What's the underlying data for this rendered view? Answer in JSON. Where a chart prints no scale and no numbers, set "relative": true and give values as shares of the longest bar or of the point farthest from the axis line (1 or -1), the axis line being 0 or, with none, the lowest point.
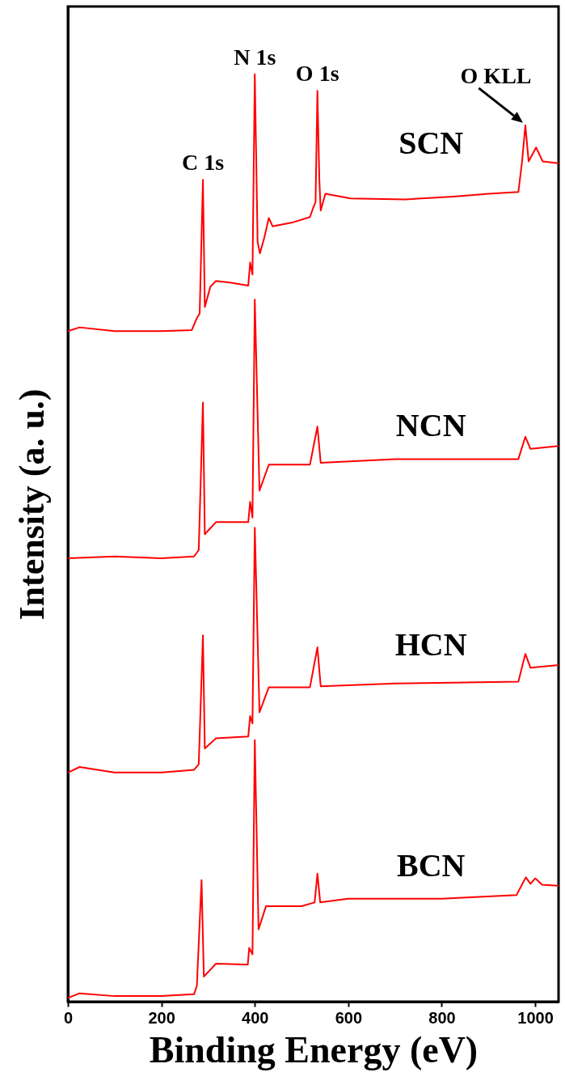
{
  "chart_data": {
    "type": "line",
    "xlabel": "Binding Energy (eV)",
    "ylabel": "Intensity (a. u.)",
    "relative": true,
    "xlim": [
      0,
      1050
    ],
    "xticks": [
      0,
      200,
      400,
      600,
      800,
      1000
    ],
    "grid": false,
    "marker": "none",
    "line_style": "solid",
    "annotations": [
      {
        "text": "C 1s",
        "x": 289,
        "y": 0.886
      },
      {
        "text": "N 1s",
        "x": 400,
        "y": 1.0
      },
      {
        "text": "O 1s",
        "x": 534,
        "y": 0.982
      },
      {
        "text": "O  KLL",
        "x": 979,
        "y": 0.945
      }
    ],
    "series": [
      {
        "name": "SCN",
        "color": "#ff0000",
        "x": [
          0,
          25,
          100,
          200,
          265,
          276,
          282,
          289,
          293,
          305,
          317,
          350,
          386,
          390,
          395,
          400,
          406,
          411,
          420,
          430,
          438,
          480,
          518,
          525,
          530,
          534,
          538,
          541,
          551,
          605,
          721,
          825,
          900,
          964,
          972,
          979,
          986,
          1002,
          1016,
          1050
        ],
        "values": [
          0.723,
          0.727,
          0.723,
          0.723,
          0.724,
          0.737,
          0.742,
          0.886,
          0.749,
          0.771,
          0.777,
          0.775,
          0.772,
          0.797,
          0.784,
          1.0,
          0.819,
          0.807,
          0.823,
          0.845,
          0.836,
          0.84,
          0.846,
          0.856,
          0.862,
          0.982,
          0.888,
          0.853,
          0.871,
          0.866,
          0.865,
          0.868,
          0.871,
          0.873,
          0.906,
          0.945,
          0.906,
          0.921,
          0.906,
          0.904
        ]
      },
      {
        "name": "NCN",
        "color": "#ff0000",
        "x": [
          0,
          100,
          200,
          270,
          280,
          289,
          293,
          317,
          386,
          390,
          395,
          400,
          410,
          430,
          518,
          534,
          541,
          700,
          964,
          979,
          990,
          1050
        ],
        "values": [
          0.478,
          0.48,
          0.478,
          0.48,
          0.487,
          0.646,
          0.504,
          0.517,
          0.517,
          0.539,
          0.522,
          0.757,
          0.551,
          0.579,
          0.579,
          0.62,
          0.581,
          0.585,
          0.585,
          0.609,
          0.596,
          0.599
        ]
      },
      {
        "name": "HCN",
        "color": "#ff0000",
        "x": [
          0,
          25,
          100,
          200,
          270,
          280,
          289,
          293,
          317,
          386,
          390,
          395,
          400,
          410,
          430,
          518,
          534,
          541,
          700,
          964,
          979,
          990,
          1050
        ],
        "values": [
          0.247,
          0.253,
          0.247,
          0.247,
          0.25,
          0.256,
          0.395,
          0.273,
          0.284,
          0.286,
          0.308,
          0.3,
          0.511,
          0.312,
          0.339,
          0.339,
          0.382,
          0.34,
          0.343,
          0.345,
          0.375,
          0.36,
          0.363
        ]
      },
      {
        "name": "BCN",
        "color": "#ff0000",
        "x": [
          0,
          25,
          100,
          200,
          270,
          276,
          286,
          291,
          317,
          385,
          388,
          395,
          400,
          408,
          424,
          500,
          528,
          534,
          540,
          600,
          800,
          960,
          980,
          990,
          1000,
          1015,
          1050
        ],
        "values": [
          0.004,
          0.009,
          0.006,
          0.006,
          0.008,
          0.017,
          0.131,
          0.027,
          0.041,
          0.04,
          0.058,
          0.051,
          0.282,
          0.078,
          0.103,
          0.103,
          0.107,
          0.138,
          0.107,
          0.111,
          0.111,
          0.115,
          0.134,
          0.127,
          0.133,
          0.126,
          0.125
        ]
      }
    ]
  }
}
